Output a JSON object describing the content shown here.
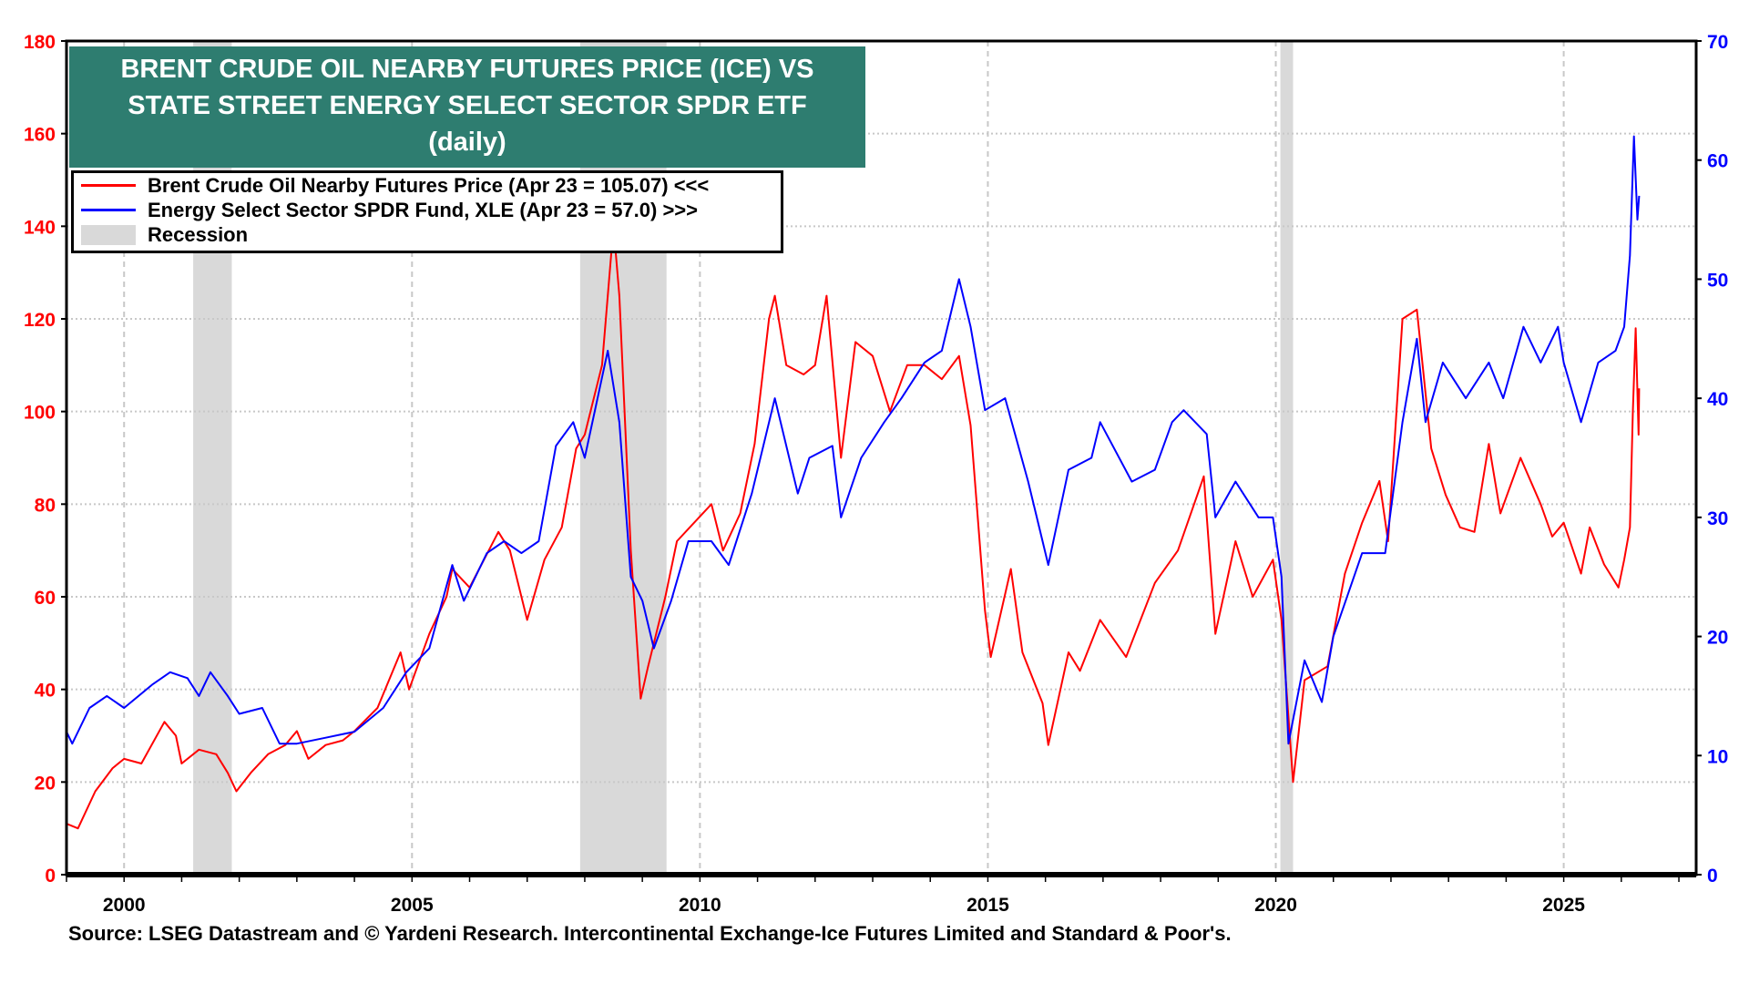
{
  "chart_data": {
    "type": "line",
    "title": "BRENT CRUDE OIL NEARBY FUTURES PRICE (ICE) VS STATE STREET ENERGY SELECT SECTOR SPDR ETF",
    "subtitle": "(daily)",
    "xlim": [
      1999.0,
      2027.3
    ],
    "x_ticks": [
      "2000",
      "2005",
      "2010",
      "2015",
      "2020",
      "2025"
    ],
    "y_left": {
      "range": [
        0,
        180
      ],
      "ticks": [
        "0",
        "20",
        "40",
        "60",
        "80",
        "100",
        "120",
        "140",
        "160",
        "180"
      ],
      "color": "#ff0000"
    },
    "y_right": {
      "range": [
        0,
        70
      ],
      "ticks": [
        "0",
        "10",
        "20",
        "30",
        "40",
        "50",
        "60",
        "70"
      ],
      "color": "#0000ff"
    },
    "grid": true,
    "legend_placement": "top-left",
    "recessions": [
      [
        2001.2,
        2001.87
      ],
      [
        2007.92,
        2009.42
      ],
      [
        2020.08,
        2020.3
      ]
    ],
    "recession_color": "#d9d9d9",
    "series": [
      {
        "name": "Brent Crude Oil Nearby Futures Price (Apr 23 = 105.07) <<<",
        "axis": "left",
        "color": "#ff0000",
        "x": [
          1999.0,
          1999.2,
          1999.5,
          1999.8,
          2000.0,
          2000.3,
          2000.7,
          2000.9,
          2001.0,
          2001.3,
          2001.6,
          2001.8,
          2001.95,
          2002.2,
          2002.5,
          2002.8,
          2003.0,
          2003.2,
          2003.5,
          2003.8,
          2004.0,
          2004.4,
          2004.8,
          2004.95,
          2005.3,
          2005.6,
          2005.7,
          2006.0,
          2006.5,
          2006.7,
          2007.0,
          2007.3,
          2007.6,
          2007.85,
          2008.0,
          2008.3,
          2008.5,
          2008.6,
          2008.8,
          2008.97,
          2009.1,
          2009.4,
          2009.6,
          2009.9,
          2010.2,
          2010.4,
          2010.7,
          2010.95,
          2011.2,
          2011.3,
          2011.5,
          2011.8,
          2012.0,
          2012.2,
          2012.45,
          2012.7,
          2013.0,
          2013.3,
          2013.6,
          2013.9,
          2014.2,
          2014.5,
          2014.7,
          2014.95,
          2015.05,
          2015.4,
          2015.6,
          2015.95,
          2016.05,
          2016.4,
          2016.6,
          2016.95,
          2017.4,
          2017.9,
          2018.3,
          2018.75,
          2018.95,
          2019.3,
          2019.6,
          2019.95,
          2020.1,
          2020.3,
          2020.5,
          2020.9,
          2021.2,
          2021.5,
          2021.8,
          2021.95,
          2022.2,
          2022.45,
          2022.7,
          2022.95,
          2023.2,
          2023.45,
          2023.7,
          2023.9,
          2024.25,
          2024.6,
          2024.8,
          2025.0,
          2025.3,
          2025.45,
          2025.7,
          2025.95,
          2026.05,
          2026.15,
          2026.2,
          2026.25,
          2026.3,
          2026.31
        ],
        "y": [
          11,
          10,
          18,
          23,
          25,
          24,
          33,
          30,
          24,
          27,
          26,
          22,
          18,
          22,
          26,
          28,
          31,
          25,
          28,
          29,
          31,
          36,
          48,
          40,
          52,
          60,
          66,
          62,
          74,
          70,
          55,
          68,
          75,
          92,
          95,
          110,
          140,
          125,
          70,
          38,
          45,
          60,
          72,
          76,
          80,
          70,
          78,
          93,
          120,
          125,
          110,
          108,
          110,
          125,
          90,
          115,
          112,
          100,
          110,
          110,
          107,
          112,
          97,
          57,
          47,
          66,
          48,
          37,
          28,
          48,
          44,
          55,
          47,
          63,
          70,
          86,
          52,
          72,
          60,
          68,
          55,
          20,
          42,
          45,
          65,
          76,
          85,
          72,
          120,
          122,
          92,
          82,
          75,
          74,
          93,
          78,
          90,
          80,
          73,
          76,
          65,
          75,
          67,
          62,
          68,
          75,
          100,
          118,
          95,
          105
        ]
      },
      {
        "name": "Energy Select Sector SPDR Fund, XLE (Apr 23 = 57.0) >>>",
        "axis": "right",
        "color": "#0000ff",
        "x": [
          1999.0,
          1999.1,
          1999.4,
          1999.7,
          2000.0,
          2000.5,
          2000.8,
          2001.1,
          2001.3,
          2001.5,
          2001.8,
          2002.0,
          2002.4,
          2002.7,
          2003.0,
          2003.5,
          2004.0,
          2004.5,
          2004.9,
          2005.3,
          2005.7,
          2005.9,
          2006.3,
          2006.6,
          2006.9,
          2007.2,
          2007.5,
          2007.8,
          2008.0,
          2008.4,
          2008.6,
          2008.8,
          2009.0,
          2009.2,
          2009.5,
          2009.8,
          2010.2,
          2010.5,
          2010.9,
          2011.3,
          2011.7,
          2011.9,
          2012.3,
          2012.45,
          2012.8,
          2013.2,
          2013.5,
          2013.9,
          2014.2,
          2014.5,
          2014.7,
          2014.95,
          2015.3,
          2015.7,
          2016.05,
          2016.4,
          2016.8,
          2016.95,
          2017.5,
          2017.9,
          2018.2,
          2018.4,
          2018.8,
          2018.95,
          2019.3,
          2019.7,
          2019.95,
          2020.1,
          2020.22,
          2020.5,
          2020.8,
          2021.0,
          2021.5,
          2021.9,
          2022.2,
          2022.45,
          2022.6,
          2022.9,
          2023.3,
          2023.7,
          2023.95,
          2024.3,
          2024.6,
          2024.9,
          2025.0,
          2025.3,
          2025.6,
          2025.9,
          2026.05,
          2026.15,
          2026.22,
          2026.28,
          2026.31
        ],
        "y": [
          12,
          11,
          14,
          15,
          14,
          16,
          17,
          16.5,
          15,
          17,
          15,
          13.5,
          14,
          11,
          11,
          11.5,
          12,
          14,
          17,
          19,
          26,
          23,
          27,
          28,
          27,
          28,
          36,
          38,
          35,
          44,
          38,
          25,
          23,
          19,
          23,
          28,
          28,
          26,
          32,
          40,
          32,
          35,
          36,
          30,
          35,
          38,
          40,
          43,
          44,
          50,
          46,
          39,
          40,
          33,
          26,
          34,
          35,
          38,
          33,
          34,
          38,
          39,
          37,
          30,
          33,
          30,
          30,
          25,
          11,
          18,
          14.5,
          20,
          27,
          27,
          38,
          45,
          38,
          43,
          40,
          43,
          40,
          46,
          43,
          46,
          43,
          38,
          43,
          44,
          46,
          52,
          62,
          55,
          57
        ]
      }
    ]
  },
  "legend": {
    "items": [
      "Brent Crude Oil Nearby Futures Price (Apr 23 = 105.07) <<<",
      "Energy Select Sector SPDR Fund, XLE (Apr 23 = 57.0) >>>",
      "Recession"
    ]
  },
  "title_lines": [
    "BRENT CRUDE OIL NEARBY FUTURES PRICE (ICE) VS",
    "STATE STREET ENERGY SELECT SECTOR SPDR ETF",
    "(daily)"
  ],
  "source": "Source: LSEG Datastream and © Yardeni Research. Intercontinental Exchange-Ice Futures Limited and Standard & Poor's."
}
